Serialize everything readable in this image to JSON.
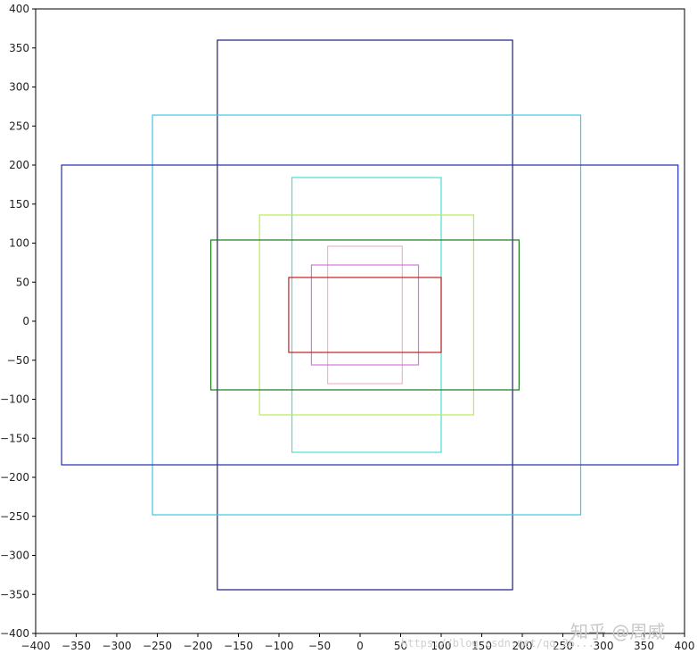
{
  "chart_data": {
    "type": "rectangles",
    "title": "",
    "xlabel": "",
    "ylabel": "",
    "xlim": [
      -400,
      400
    ],
    "ylim": [
      -400,
      400
    ],
    "grid": false,
    "legend": "none",
    "xticks": [
      -400,
      -350,
      -300,
      -250,
      -200,
      -150,
      -100,
      -50,
      0,
      50,
      100,
      150,
      200,
      250,
      300,
      350,
      400
    ],
    "yticks": [
      400,
      350,
      300,
      250,
      200,
      150,
      100,
      50,
      0,
      -50,
      -100,
      -150,
      -200,
      -250,
      -300,
      -350,
      -400
    ],
    "rectangles": [
      {
        "id": "navy",
        "color": "#1f1f7a",
        "x0": -176,
        "y0": -344,
        "x1": 188,
        "y1": 360
      },
      {
        "id": "cyan",
        "color": "#3cc8e6",
        "x0": -256,
        "y0": -248,
        "x1": 272,
        "y1": 264
      },
      {
        "id": "blue",
        "color": "#1f2fb4",
        "x0": -368,
        "y0": -184,
        "x1": 392,
        "y1": 200
      },
      {
        "id": "turquoise",
        "color": "#46e0d2",
        "x0": -84,
        "y0": -168,
        "x1": 100,
        "y1": 184
      },
      {
        "id": "yellowgreen",
        "color": "#b4f050",
        "x0": -124,
        "y0": -120,
        "x1": 140,
        "y1": 136
      },
      {
        "id": "green",
        "color": "#1a7a1a",
        "x0": -184,
        "y0": -88,
        "x1": 196,
        "y1": 104
      },
      {
        "id": "pink",
        "color": "#f0b4c8",
        "x0": -40,
        "y0": -80,
        "x1": 52,
        "y1": 96
      },
      {
        "id": "violet",
        "color": "#d278dc",
        "x0": -60,
        "y0": -56,
        "x1": 72,
        "y1": 72
      },
      {
        "id": "red",
        "color": "#c81e1e",
        "x0": -88,
        "y0": -40,
        "x1": 100,
        "y1": 56
      }
    ]
  },
  "watermark": {
    "text": "知乎 @周威",
    "url": "https://blog.csdn.net/qq_26..."
  }
}
